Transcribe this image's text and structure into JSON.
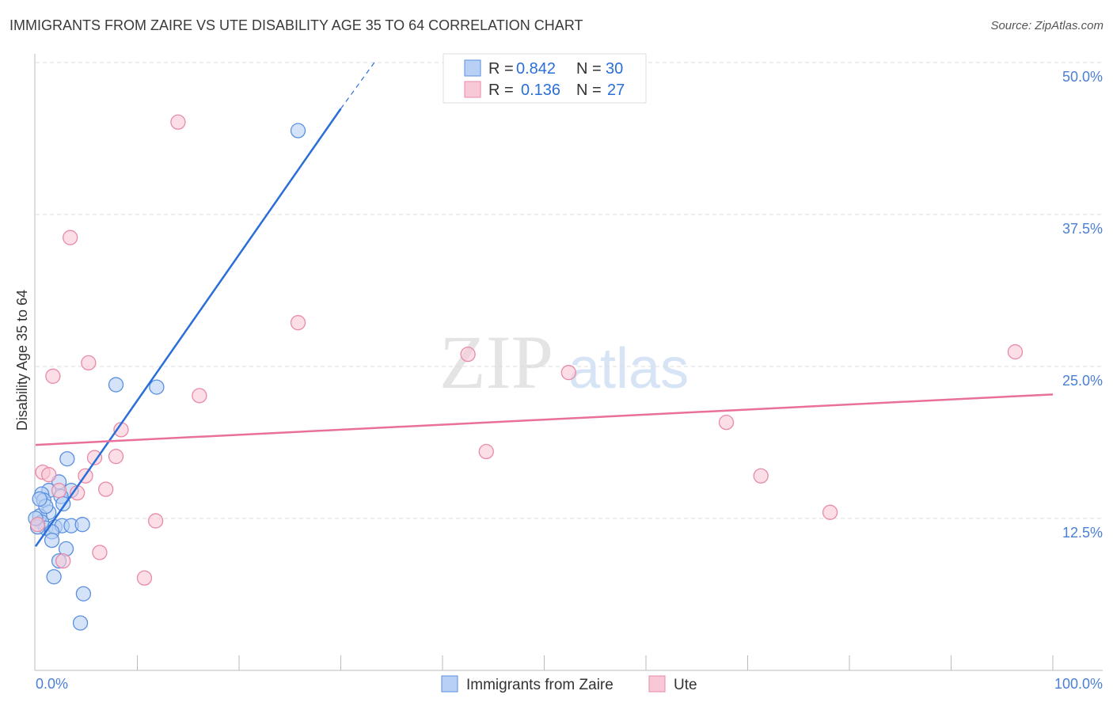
{
  "chart_data": {
    "type": "scatter",
    "title": "IMMIGRANTS FROM ZAIRE VS UTE DISABILITY AGE 35 TO 64 CORRELATION CHART",
    "source": "Source: ZipAtlas.com",
    "xlabel": "",
    "ylabel": "Disability Age 35 to 64",
    "xlim": [
      0,
      100
    ],
    "ylim": [
      0,
      50
    ],
    "x_tick_labels": [
      "0.0%",
      "100.0%"
    ],
    "y_ticks": [
      12.5,
      25,
      37.5,
      50
    ],
    "y_tick_labels": [
      "12.5%",
      "25.0%",
      "37.5%",
      "50.0%"
    ],
    "grid": true,
    "watermark": "ZIPatlas",
    "series": [
      {
        "name": "Immigrants from Zaire",
        "color": "#5b8fe0",
        "fill": "#b7d0f4",
        "line_color": "#2a6fd8",
        "R": "0.842",
        "N": "30",
        "trend": [
          [
            0,
            10.2
          ],
          [
            30,
            46.2
          ]
        ],
        "trend_dashed": [
          [
            30,
            46.2
          ],
          [
            33.3,
            50
          ]
        ],
        "points": [
          [
            25.8,
            44.4
          ],
          [
            7.9,
            23.5
          ],
          [
            11.9,
            23.3
          ],
          [
            3.1,
            17.4
          ],
          [
            2.3,
            15.5
          ],
          [
            1.3,
            14.8
          ],
          [
            0.6,
            14.5
          ],
          [
            0.8,
            14.0
          ],
          [
            3.5,
            14.8
          ],
          [
            2.5,
            14.3
          ],
          [
            2.7,
            13.7
          ],
          [
            1.3,
            13.0
          ],
          [
            0.4,
            12.7
          ],
          [
            0.6,
            12.2
          ],
          [
            1.0,
            11.7
          ],
          [
            1.9,
            11.8
          ],
          [
            2.6,
            11.9
          ],
          [
            3.5,
            11.9
          ],
          [
            4.6,
            12.0
          ],
          [
            1.6,
            11.4
          ],
          [
            1.6,
            10.7
          ],
          [
            3.0,
            10.0
          ],
          [
            2.3,
            9.0
          ],
          [
            1.8,
            7.7
          ],
          [
            4.7,
            6.3
          ],
          [
            4.4,
            3.9
          ],
          [
            0.2,
            11.8
          ],
          [
            1.0,
            13.5
          ],
          [
            0.0,
            12.5
          ],
          [
            0.4,
            14.1
          ]
        ]
      },
      {
        "name": "Ute",
        "color": "#e88aa8",
        "fill": "#f8c8d6",
        "line_color": "#e8709a",
        "R": "0.136",
        "N": "27",
        "trend": [
          [
            0,
            18.55
          ],
          [
            100,
            22.7
          ]
        ],
        "points": [
          [
            14.0,
            45.1
          ],
          [
            3.4,
            35.6
          ],
          [
            25.8,
            28.6
          ],
          [
            42.5,
            26.0
          ],
          [
            96.3,
            26.2
          ],
          [
            5.2,
            25.3
          ],
          [
            1.7,
            24.2
          ],
          [
            52.4,
            24.5
          ],
          [
            16.1,
            22.6
          ],
          [
            8.4,
            19.8
          ],
          [
            67.9,
            20.4
          ],
          [
            5.8,
            17.5
          ],
          [
            7.9,
            17.6
          ],
          [
            44.3,
            18.0
          ],
          [
            0.7,
            16.3
          ],
          [
            1.3,
            16.1
          ],
          [
            4.9,
            16.0
          ],
          [
            71.3,
            16.0
          ],
          [
            6.9,
            14.9
          ],
          [
            2.3,
            14.8
          ],
          [
            4.1,
            14.6
          ],
          [
            78.1,
            13.0
          ],
          [
            11.8,
            12.3
          ],
          [
            0.2,
            12.0
          ],
          [
            6.3,
            9.7
          ],
          [
            2.7,
            9.0
          ],
          [
            10.7,
            7.6
          ]
        ]
      }
    ],
    "legend_labels": {
      "r": "R =",
      "n": "N ="
    }
  }
}
